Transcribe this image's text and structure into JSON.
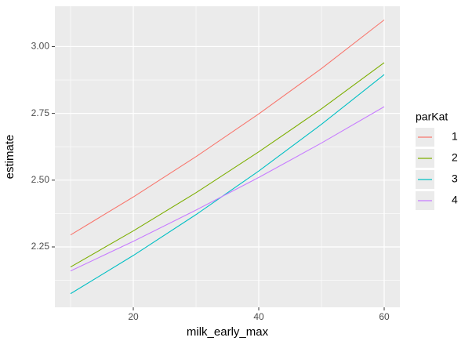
{
  "chart_data": {
    "type": "line",
    "x_label": "milk_early_max",
    "y_label": "estimate",
    "x": [
      10,
      20,
      30,
      40,
      50,
      60
    ],
    "series": [
      {
        "name": "1",
        "color": "#F8766D",
        "values": [
          2.295,
          2.437,
          2.588,
          2.748,
          2.918,
          3.1
        ]
      },
      {
        "name": "2",
        "color": "#7CAE00",
        "values": [
          2.175,
          2.31,
          2.453,
          2.606,
          2.767,
          2.94
        ]
      },
      {
        "name": "3",
        "color": "#00BFC4",
        "values": [
          2.075,
          2.218,
          2.371,
          2.534,
          2.709,
          2.895
        ]
      },
      {
        "name": "4",
        "color": "#C77CFF",
        "values": [
          2.16,
          2.271,
          2.388,
          2.51,
          2.639,
          2.775
        ]
      }
    ],
    "legend_title": "parKat",
    "legend_position": "right",
    "xlim": [
      7.5,
      62.5
    ],
    "xticks": [
      20,
      40,
      60
    ],
    "xminor": [
      10,
      30,
      50
    ],
    "ylim": [
      2.024,
      3.151
    ],
    "yticks": [
      {
        "value": 2.25,
        "label": "2.25"
      },
      {
        "value": 2.5,
        "label": "2.50"
      },
      {
        "value": 2.75,
        "label": "2.75"
      },
      {
        "value": 3.0,
        "label": "3.00"
      }
    ],
    "yminor": [
      2.125,
      2.375,
      2.625,
      2.875
    ],
    "grid": true
  }
}
